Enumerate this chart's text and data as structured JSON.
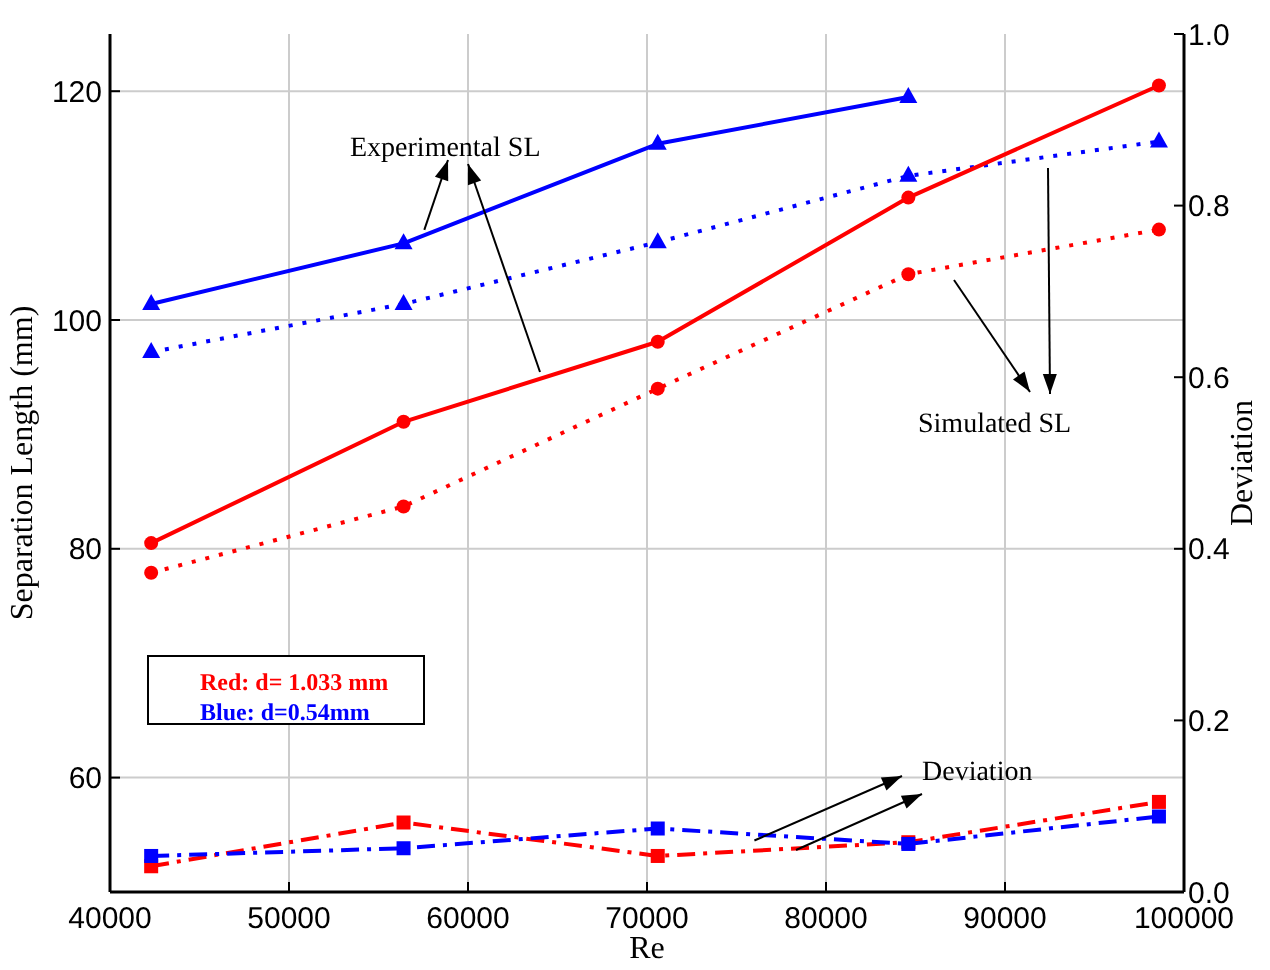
{
  "chart_data": {
    "type": "line",
    "xlabel": "Re",
    "ylabel": "Separation Length (mm)",
    "y2label": "Deviation",
    "x": [
      42300,
      56400,
      70600,
      84600,
      98600
    ],
    "xlim": [
      40000,
      100000
    ],
    "xticks": [
      40000,
      50000,
      60000,
      70000,
      80000,
      90000,
      100000
    ],
    "ylim": [
      50,
      125
    ],
    "yticks": [
      60,
      80,
      100,
      120
    ],
    "y2lim": [
      0,
      1
    ],
    "y2ticks": [
      {
        "value": 0,
        "label": "0.0"
      },
      0.2,
      0.4,
      0.6,
      0.8,
      {
        "value": 1,
        "label": "1.0"
      }
    ],
    "grid": true,
    "series": [
      {
        "color": "#0000ff",
        "marker": "triangle",
        "line_style": "solid",
        "values": [
          101.4,
          106.7,
          115.4,
          119.5,
          null
        ]
      },
      {
        "color": "#0000ff",
        "marker": "triangle",
        "line_style": "dotted",
        "values": [
          97.2,
          101.4,
          106.8,
          112.6,
          115.6
        ]
      },
      {
        "color": "#ff0000",
        "marker": "circle",
        "line_style": "solid",
        "values": [
          80.5,
          91.1,
          98.1,
          110.7,
          120.5
        ]
      },
      {
        "color": "#ff0000",
        "marker": "circle",
        "line_style": "dotted",
        "values": [
          77.9,
          83.7,
          94.0,
          104.0,
          107.9
        ]
      },
      {
        "color": "#ff0000",
        "marker": "square",
        "line_style": "dashdot",
        "axis": "y2",
        "values": [
          0.03,
          0.081,
          0.042,
          0.058,
          0.105
        ]
      },
      {
        "color": "#0000ff",
        "marker": "square",
        "line_style": "dashdot",
        "axis": "y2",
        "values": [
          0.042,
          0.051,
          0.074,
          0.056,
          0.088
        ]
      }
    ],
    "annotations": [
      {
        "text": "Experimental SL",
        "x": 57000,
        "y": 107
      },
      "Simulated SL",
      {
        "text": "Deviation",
        "x": 76000,
        "y": 54.5
      },
      "Red: d= 1.033 mm",
      "Blue: d=0.54mm"
    ]
  }
}
